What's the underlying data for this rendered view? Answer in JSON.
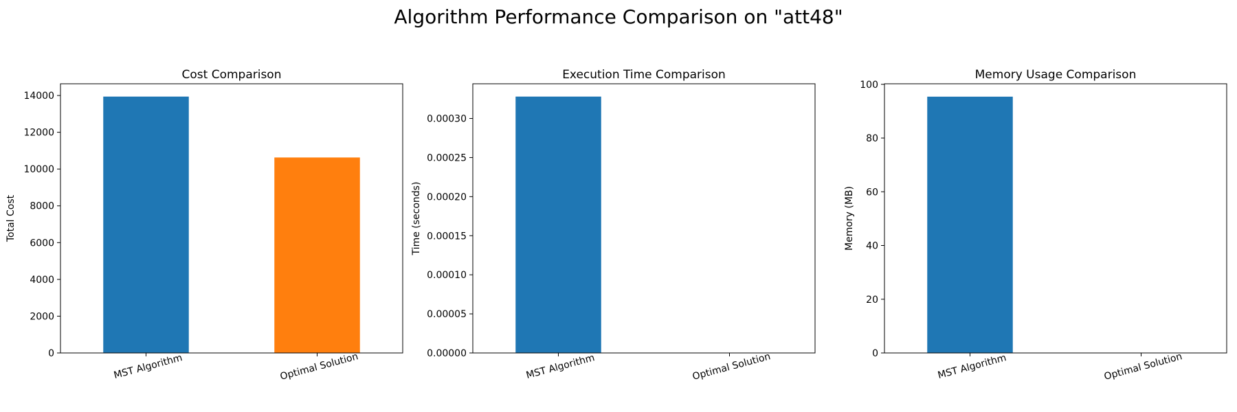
{
  "figure": {
    "title": "Algorithm Performance Comparison on \"att48\""
  },
  "chart_data": [
    {
      "type": "bar",
      "title": "Cost Comparison",
      "xlabel": "",
      "ylabel": "Total Cost",
      "categories": [
        "MST Algorithm",
        "Optimal Solution"
      ],
      "values": [
        13940,
        10628
      ],
      "colors": [
        "#1f77b4",
        "#ff7f0e"
      ],
      "ylim": [
        0,
        14637
      ],
      "yticks": [
        0,
        2000,
        4000,
        6000,
        8000,
        10000,
        12000,
        14000
      ],
      "ytick_labels": [
        "0",
        "2000",
        "4000",
        "6000",
        "8000",
        "10000",
        "12000",
        "14000"
      ],
      "grid": false,
      "legend": "none"
    },
    {
      "type": "bar",
      "title": "Execution Time Comparison",
      "xlabel": "",
      "ylabel": "Time (seconds)",
      "categories": [
        "MST Algorithm",
        "Optimal Solution"
      ],
      "values": [
        0.000328,
        0
      ],
      "colors": [
        "#1f77b4",
        "#ff7f0e"
      ],
      "ylim": [
        0,
        0.0003444
      ],
      "yticks": [
        0,
        5e-05,
        0.0001,
        0.00015,
        0.0002,
        0.00025,
        0.0003
      ],
      "ytick_labels": [
        "0.00000",
        "0.00005",
        "0.00010",
        "0.00015",
        "0.00020",
        "0.00025",
        "0.00030"
      ],
      "grid": false,
      "legend": "none"
    },
    {
      "type": "bar",
      "title": "Memory Usage Comparison",
      "xlabel": "",
      "ylabel": "Memory (MB)",
      "categories": [
        "MST Algorithm",
        "Optimal Solution"
      ],
      "values": [
        95.4,
        0
      ],
      "colors": [
        "#1f77b4",
        "#ff7f0e"
      ],
      "ylim": [
        0,
        100.2
      ],
      "yticks": [
        0,
        20,
        40,
        60,
        80,
        100
      ],
      "ytick_labels": [
        "0",
        "20",
        "40",
        "60",
        "80",
        "100"
      ],
      "grid": false,
      "legend": "none"
    }
  ]
}
